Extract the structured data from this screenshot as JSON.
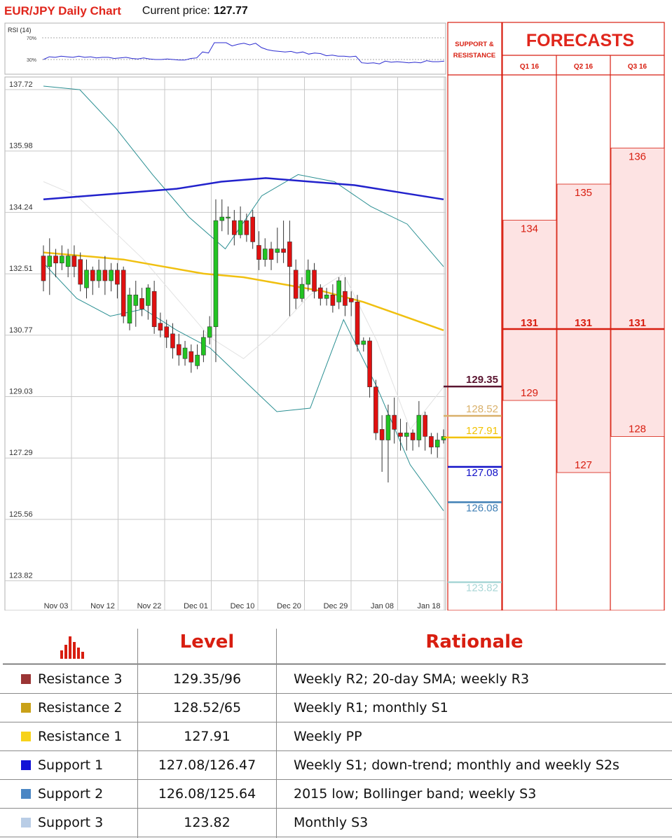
{
  "header": {
    "title": "EUR/JPY Daily Chart",
    "price_label": "Current price:",
    "price_value": "127.77"
  },
  "rsi": {
    "label": "RSI (14)",
    "upper_label": "70%",
    "lower_label": "30%",
    "upper": 70,
    "lower": 30,
    "values": [
      30,
      35,
      34,
      36,
      35,
      34,
      36,
      34,
      35,
      33,
      34,
      34,
      32,
      33,
      34,
      32,
      31,
      33,
      31,
      30,
      30,
      31,
      30,
      29,
      29,
      32,
      33,
      44,
      42,
      61,
      61,
      61,
      55,
      58,
      60,
      57,
      60,
      52,
      48,
      46,
      45,
      44,
      45,
      42,
      44,
      40,
      42,
      41,
      37,
      38,
      36,
      36,
      35,
      36,
      24,
      23,
      24,
      22,
      27,
      25,
      26,
      25,
      24,
      25,
      24,
      28,
      26,
      26,
      27
    ]
  },
  "chart_data": {
    "type": "candlestick",
    "title": "EUR/JPY Daily Chart",
    "y_tick_labels": [
      "137.72",
      "135.98",
      "134.24",
      "132.51",
      "130.77",
      "129.03",
      "127.29",
      "125.56",
      "123.82"
    ],
    "x_tick_labels": [
      "Nov 03",
      "Nov 12",
      "Nov 22",
      "Dec 01",
      "Dec 10",
      "Dec 20",
      "Dec 29",
      "Jan 08",
      "Jan 18"
    ],
    "ylim": [
      123.12,
      137.72
    ],
    "candles": [
      [
        132.9,
        132.2,
        133.2,
        131.9
      ],
      [
        132.6,
        132.9,
        133.4,
        131.8
      ],
      [
        132.9,
        132.7,
        133.1,
        132.3
      ],
      [
        132.7,
        132.9,
        133.2,
        132.5
      ],
      [
        132.6,
        132.9,
        133.1,
        132.3
      ],
      [
        132.9,
        132.6,
        133.2,
        132.3
      ],
      [
        132.8,
        132.1,
        133.0,
        131.9
      ],
      [
        132.0,
        132.5,
        132.8,
        131.7
      ],
      [
        132.5,
        132.2,
        132.6,
        131.8
      ],
      [
        132.2,
        132.5,
        132.8,
        132.0
      ],
      [
        132.5,
        132.2,
        132.9,
        131.8
      ],
      [
        132.2,
        132.5,
        132.7,
        131.9
      ],
      [
        132.5,
        132.1,
        132.7,
        131.7
      ],
      [
        132.5,
        131.2,
        132.6,
        131.0
      ],
      [
        131.0,
        131.8,
        132.0,
        130.8
      ],
      [
        131.5,
        131.8,
        132.2,
        130.9
      ],
      [
        131.7,
        131.4,
        132.0,
        131.2
      ],
      [
        131.5,
        132.0,
        132.1,
        131.1
      ],
      [
        131.9,
        130.9,
        132.2,
        130.7
      ],
      [
        131.0,
        130.8,
        131.3,
        130.6
      ],
      [
        130.9,
        130.6,
        131.1,
        130.3
      ],
      [
        130.7,
        130.3,
        131.0,
        130.0
      ],
      [
        130.4,
        130.1,
        130.7,
        129.8
      ],
      [
        130.0,
        130.3,
        130.5,
        129.8
      ],
      [
        130.2,
        129.9,
        130.4,
        129.6
      ],
      [
        129.8,
        130.1,
        130.4,
        129.7
      ],
      [
        130.1,
        130.6,
        130.8,
        129.9
      ],
      [
        130.6,
        130.9,
        131.2,
        130.4
      ],
      [
        130.9,
        133.9,
        134.5,
        129.9
      ],
      [
        133.9,
        134.0,
        134.5,
        133.6
      ],
      [
        134.0,
        134.0,
        134.3,
        133.5
      ],
      [
        133.9,
        133.5,
        134.2,
        133.2
      ],
      [
        133.5,
        133.9,
        134.3,
        133.4
      ],
      [
        133.9,
        133.5,
        134.1,
        133.3
      ],
      [
        134.0,
        133.3,
        134.2,
        133.1
      ],
      [
        133.2,
        132.8,
        133.6,
        132.5
      ],
      [
        132.8,
        133.1,
        133.4,
        132.6
      ],
      [
        133.1,
        132.8,
        133.3,
        132.5
      ],
      [
        133.0,
        133.1,
        133.7,
        132.7
      ],
      [
        133.1,
        133.0,
        133.9,
        132.7
      ],
      [
        133.3,
        132.6,
        133.9,
        131.2
      ],
      [
        132.5,
        131.7,
        132.8,
        131.4
      ],
      [
        131.7,
        132.1,
        132.3,
        131.6
      ],
      [
        132.1,
        132.5,
        132.8,
        131.9
      ],
      [
        132.5,
        131.9,
        132.7,
        131.7
      ],
      [
        132.0,
        131.7,
        132.1,
        131.5
      ],
      [
        131.7,
        131.8,
        132.0,
        131.5
      ],
      [
        131.8,
        131.5,
        132.1,
        131.3
      ],
      [
        131.6,
        132.2,
        132.3,
        131.4
      ],
      [
        131.9,
        131.5,
        132.3,
        131.2
      ],
      [
        131.7,
        131.6,
        131.9,
        131.2
      ],
      [
        131.6,
        130.4,
        131.8,
        130.2
      ],
      [
        130.4,
        130.5,
        130.6,
        130.2
      ],
      [
        130.5,
        129.2,
        130.6,
        128.9
      ],
      [
        129.2,
        127.9,
        129.4,
        127.7
      ],
      [
        128.0,
        127.7,
        128.4,
        126.8
      ],
      [
        127.7,
        128.4,
        128.7,
        126.5
      ],
      [
        128.4,
        128.0,
        128.9,
        127.6
      ],
      [
        127.9,
        127.8,
        128.3,
        127.4
      ],
      [
        127.8,
        127.9,
        128.2,
        127.4
      ],
      [
        127.9,
        127.7,
        128.0,
        127.4
      ],
      [
        127.7,
        128.4,
        128.8,
        127.5
      ],
      [
        128.4,
        127.8,
        128.5,
        127.4
      ],
      [
        127.8,
        127.5,
        127.9,
        127.3
      ],
      [
        127.5,
        127.7,
        127.9,
        127.2
      ],
      [
        127.7,
        127.8,
        128.0,
        127.6
      ]
    ],
    "moving_average_yellow": [
      133.0,
      132.9,
      132.8,
      132.6,
      132.4,
      132.3,
      132.1,
      131.9,
      131.6,
      131.2,
      130.8
    ],
    "moving_average_blue": [
      134.5,
      134.6,
      134.7,
      134.8,
      135.0,
      135.1,
      135.0,
      134.9,
      134.7,
      134.5
    ],
    "bollinger_upper": [
      137.7,
      137.6,
      136.5,
      135.2,
      134.0,
      133.1,
      134.6,
      135.2,
      135.0,
      134.3,
      133.8,
      132.6
    ],
    "bollinger_lower": [
      132.7,
      131.7,
      131.2,
      131.4,
      130.8,
      130.3,
      129.4,
      128.5,
      128.6,
      131.1,
      129.2,
      127.0,
      125.7
    ],
    "bollinger_middle": [
      135.0,
      134.6,
      133.7,
      132.8,
      131.7,
      130.6,
      130.0,
      130.8,
      131.8,
      132.4,
      130.5,
      128.0,
      129.2
    ]
  },
  "levels": {
    "title": "SUPPORT & RESISTANCE",
    "items": [
      {
        "label": "129.35",
        "value": 129.35,
        "color": "#5a1530"
      },
      {
        "label": "128.52",
        "value": 128.52,
        "color": "#d9b06a"
      },
      {
        "label": "127.91",
        "value": 127.91,
        "color": "#f2c200"
      },
      {
        "label": "127.08",
        "value": 127.08,
        "color": "#1111c8"
      },
      {
        "label": "126.08",
        "value": 126.08,
        "color": "#3f7fb5"
      },
      {
        "label": "123.82",
        "value": 123.82,
        "color": "#a8d6d6"
      }
    ]
  },
  "forecasts": {
    "title": "FORECASTS",
    "columns": [
      {
        "label": "Q1 16",
        "high": "134",
        "high_v": 134,
        "mid": "131",
        "low": "129",
        "low_v": 129
      },
      {
        "label": "Q2 16",
        "high": "135",
        "high_v": 135,
        "mid": "131",
        "low": "127",
        "low_v": 127
      },
      {
        "label": "Q3 16",
        "high": "136",
        "high_v": 136,
        "mid": "131",
        "low": "128",
        "low_v": 128
      }
    ],
    "mid_value": 131
  },
  "table": {
    "header_level": "Level",
    "header_rationale": "Rationale",
    "rows": [
      {
        "name": "Resistance 3",
        "level": "129.35/96",
        "rationale": "Weekly R2; 20-day SMA; weekly R3",
        "color": "#9b3535"
      },
      {
        "name": "Resistance 2",
        "level": "128.52/65",
        "rationale": "Weekly R1; monthly S1",
        "color": "#c9a118"
      },
      {
        "name": "Resistance 1",
        "level": "127.91",
        "rationale": "Weekly PP",
        "color": "#f7d21a"
      },
      {
        "name": "Support 1",
        "level": "127.08/126.47",
        "rationale": "Weekly S1; down-trend; monthly and weekly S2s",
        "color": "#1313d6"
      },
      {
        "name": "Support 2",
        "level": "126.08/125.64",
        "rationale": "2015 low; Bollinger band; weekly S3",
        "color": "#4a86c4"
      },
      {
        "name": "Support 3",
        "level": "123.82",
        "rationale": "Monthly S3",
        "color": "#b9cde6"
      }
    ]
  }
}
